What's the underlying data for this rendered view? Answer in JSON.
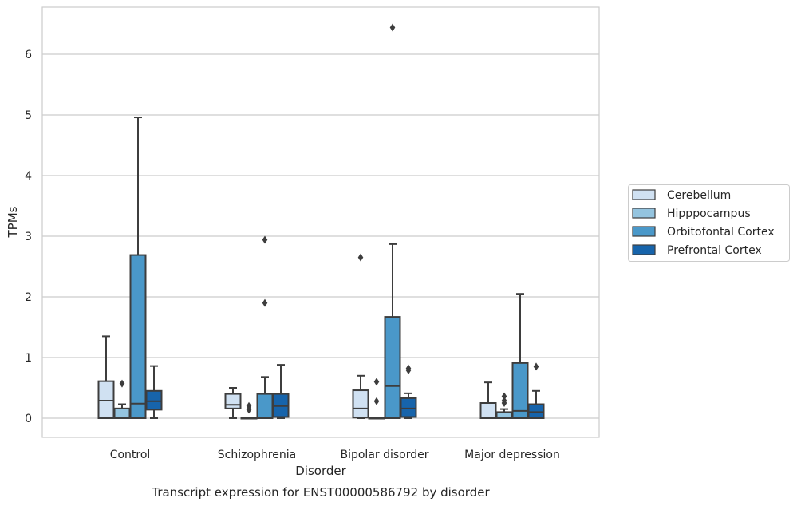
{
  "chart_data": {
    "type": "box",
    "title": "Transcript expression for ENST00000586792 by disorder",
    "xlabel": "Disorder",
    "ylabel": "TPMs",
    "categories": [
      "Control",
      "Schizophrenia",
      "Bipolar disorder",
      "Major depression"
    ],
    "y_ticks": [
      0,
      1,
      2,
      3,
      4,
      5,
      6
    ],
    "ylim": [
      -0.32,
      6.7
    ],
    "grid": "horizontal",
    "legend_position": "right",
    "series": [
      {
        "name": "Cerebellum",
        "color": "#d0e1f2",
        "boxes": [
          {
            "whisker_low": 0,
            "q1": 0,
            "median": 0.29,
            "q3": 0.61,
            "whisker_high": 1.35,
            "outliers": []
          },
          {
            "whisker_low": 0,
            "q1": 0.16,
            "median": 0.22,
            "q3": 0.4,
            "whisker_high": 0.5,
            "outliers": []
          },
          {
            "whisker_low": 0,
            "q1": 0.01,
            "median": 0.16,
            "q3": 0.46,
            "whisker_high": 0.7,
            "outliers": [
              2.65
            ]
          },
          {
            "whisker_low": 0,
            "q1": 0,
            "median": 0,
            "q3": 0.25,
            "whisker_high": 0.59,
            "outliers": []
          }
        ]
      },
      {
        "name": "Hipppocampus",
        "color": "#94c4df",
        "boxes": [
          {
            "whisker_low": 0,
            "q1": 0,
            "median": 0,
            "q3": 0.16,
            "whisker_high": 0.23,
            "outliers": [
              0.57
            ]
          },
          {
            "whisker_low": 0,
            "q1": 0,
            "median": 0,
            "q3": 0,
            "whisker_high": 0,
            "outliers": [
              0.2,
              0.14
            ]
          },
          {
            "whisker_low": 0,
            "q1": 0,
            "median": 0,
            "q3": 0,
            "whisker_high": 0,
            "outliers": [
              0.6,
              0.28
            ]
          },
          {
            "whisker_low": 0,
            "q1": 0,
            "median": 0,
            "q3": 0.1,
            "whisker_high": 0.15,
            "outliers": [
              0.36,
              0.25,
              0.29
            ]
          }
        ]
      },
      {
        "name": "Orbitofontal Cortex",
        "color": "#4a98c9",
        "boxes": [
          {
            "whisker_low": 0,
            "q1": 0,
            "median": 0.24,
            "q3": 2.69,
            "whisker_high": 4.96,
            "outliers": []
          },
          {
            "whisker_low": 0,
            "q1": 0,
            "median": 0,
            "q3": 0.4,
            "whisker_high": 0.68,
            "outliers": [
              2.94,
              1.9
            ]
          },
          {
            "whisker_low": 0,
            "q1": 0,
            "median": 0.53,
            "q3": 1.67,
            "whisker_high": 2.87,
            "outliers": [
              6.44
            ]
          },
          {
            "whisker_low": 0,
            "q1": 0,
            "median": 0.12,
            "q3": 0.91,
            "whisker_high": 2.05,
            "outliers": []
          }
        ]
      },
      {
        "name": "Prefrontal Cortex",
        "color": "#1764ab",
        "boxes": [
          {
            "whisker_low": 0,
            "q1": 0.14,
            "median": 0.28,
            "q3": 0.45,
            "whisker_high": 0.86,
            "outliers": []
          },
          {
            "whisker_low": 0,
            "q1": 0.02,
            "median": 0.2,
            "q3": 0.4,
            "whisker_high": 0.88,
            "outliers": []
          },
          {
            "whisker_low": 0,
            "q1": 0.02,
            "median": 0.16,
            "q3": 0.33,
            "whisker_high": 0.41,
            "outliers": [
              0.82,
              0.79
            ]
          },
          {
            "whisker_low": 0,
            "q1": 0,
            "median": 0.1,
            "q3": 0.23,
            "whisker_high": 0.45,
            "outliers": [
              0.85
            ]
          }
        ]
      }
    ]
  }
}
